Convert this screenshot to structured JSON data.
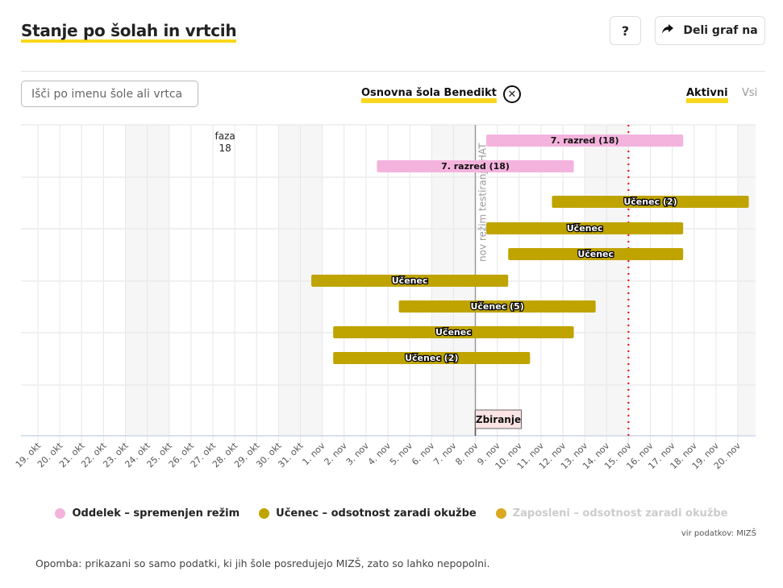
{
  "header": {
    "title": "Stanje po šolah in vrtcih",
    "help_label": "?",
    "share_label": "Deli graf na"
  },
  "filters": {
    "search_placeholder": "Išči po imenu šole ali vrtca",
    "selected_school": "Osnovna šola Benedikt",
    "clear_label": "✕",
    "toggle_active": "Aktivni",
    "toggle_all": "Vsi"
  },
  "chart_data": {
    "type": "gantt",
    "title": "Stanje po šolah in vrtcih",
    "x_categories": [
      "19. okt",
      "20. okt",
      "21. okt",
      "22. okt",
      "23. okt",
      "24. okt",
      "25. okt",
      "26. okt",
      "27. okt",
      "28. okt",
      "29. okt",
      "30. okt",
      "31. okt",
      "1. nov",
      "2. nov",
      "3. nov",
      "4. nov",
      "5. nov",
      "6. nov",
      "7. nov",
      "8. nov",
      "9. nov",
      "10. nov",
      "11. nov",
      "12. nov",
      "13. nov",
      "14. nov",
      "15. nov",
      "16. nov",
      "17. nov",
      "18. nov",
      "19. nov",
      "20. nov"
    ],
    "weekend_days": [
      "24. okt",
      "25. okt",
      "31. okt",
      "1. nov",
      "7. nov",
      "8. nov",
      "14. nov",
      "15. nov",
      "21. nov"
    ],
    "grid": true,
    "rows": 6,
    "annotations": [
      {
        "label": "faza",
        "sublabel": "18",
        "date": "28. okt"
      },
      {
        "label": "nov režim testiranja HAT",
        "date": "8. nov",
        "type": "vertical-line"
      },
      {
        "label": "Zbiranje",
        "date": "8. nov",
        "type": "flag"
      },
      {
        "label": "today",
        "date": "15. nov",
        "type": "red-dotted-line"
      }
    ],
    "series": [
      {
        "name": "Oddelek - spremenjen režim",
        "color": "#f4b3dd"
      },
      {
        "name": "Učenec - odsotnost zaradi okužbe",
        "color": "#bfa400"
      },
      {
        "name": "Zaposleni - odsotnost zaradi okužbe",
        "color": "#dba820",
        "disabled": true
      }
    ],
    "bars": [
      {
        "label": "7. razred (18)",
        "series": 0,
        "start": 20.5,
        "end": 29.5,
        "lane": 0
      },
      {
        "label": "7. razred (18)",
        "series": 0,
        "start": 15.5,
        "end": 24.5,
        "lane": 1
      },
      {
        "label": "Učenec (2)",
        "series": 1,
        "start": 23.5,
        "end": 32.5,
        "lane": 2
      },
      {
        "label": "Učenec",
        "series": 1,
        "start": 20.5,
        "end": 29.5,
        "lane": 3
      },
      {
        "label": "Učenec",
        "series": 1,
        "start": 21.5,
        "end": 29.5,
        "lane": 4
      },
      {
        "label": "Učenec",
        "series": 1,
        "start": 12.5,
        "end": 21.5,
        "lane": 5
      },
      {
        "label": "Učenec (5)",
        "series": 1,
        "start": 16.5,
        "end": 25.5,
        "lane": 6
      },
      {
        "label": "Učenec",
        "series": 1,
        "start": 13.5,
        "end": 24.5,
        "lane": 7
      },
      {
        "label": "Učenec (2)",
        "series": 1,
        "start": 13.5,
        "end": 22.5,
        "lane": 8
      }
    ]
  },
  "legend": {
    "items": [
      {
        "label": "Oddelek – spremenjen režim",
        "color": "#f4b3dd"
      },
      {
        "label": "Učenec – odsotnost zaradi okužbe",
        "color": "#bfa400"
      },
      {
        "label": "Zaposleni – odsotnost zaradi okužbe",
        "color": "#dba820"
      }
    ]
  },
  "footer": {
    "source": "vir podatkov: MIZŠ",
    "note": "Opomba: prikazani so samo podatki, ki jih šole posredujejo MIZŠ, zato so lahko nepopolni."
  }
}
